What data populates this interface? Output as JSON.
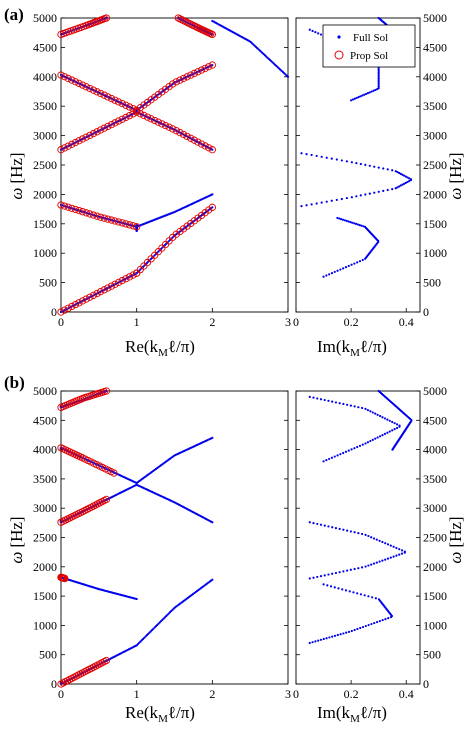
{
  "panels": [
    {
      "label": "(a)",
      "ylabel_omega": "ω",
      "ylabel_units": "[Hz]",
      "xlabel_re": "Re(k",
      "xlabel_im": "Im(k",
      "xlabel_sub": "M",
      "xlabel_tail": "ℓ/π)",
      "legend": [
        "Full Sol",
        "Prop Sol"
      ]
    },
    {
      "label": "(b)",
      "ylabel_omega": "ω",
      "ylabel_units": "[Hz]",
      "xlabel_re": "Re(k",
      "xlabel_im": "Im(k",
      "xlabel_sub": "M",
      "xlabel_tail": "ℓ/π)"
    }
  ],
  "colors": {
    "full": "#0000ee",
    "prop": "#e00000",
    "axis": "#000000"
  },
  "chart_data": [
    {
      "type": "scatter",
      "title": "",
      "panel": "(a)",
      "ylabel": "ω [Hz]",
      "ylim": [
        0,
        5000
      ],
      "yticks": [
        0,
        500,
        1000,
        1500,
        2000,
        2500,
        3000,
        3500,
        4000,
        4500,
        5000
      ],
      "legend_placement": "top-right of Im subplot",
      "subplots": [
        {
          "xlabel": "Re(kMℓ/π)",
          "xlim": [
            0,
            3
          ],
          "xticks": [
            0,
            1,
            2,
            3
          ],
          "series": [
            {
              "name": "Full Sol",
              "marker": "dot",
              "branches": [
                [
                  [
                    0,
                    0
                  ],
                  [
                    0.5,
                    330
                  ],
                  [
                    1,
                    660
                  ]
                ],
                [
                  [
                    1,
                    660
                  ],
                  [
                    1.5,
                    1300
                  ],
                  [
                    2,
                    1780
                  ]
                ],
                [
                  [
                    1,
                    1380
                  ],
                  [
                    1,
                    1480
                  ]
                ],
                [
                  [
                    0,
                    1820
                  ],
                  [
                    0.5,
                    1620
                  ],
                  [
                    1,
                    1450
                  ]
                ],
                [
                  [
                    1,
                    1450
                  ],
                  [
                    1.5,
                    1700
                  ],
                  [
                    2,
                    2000
                  ]
                ],
                [
                  [
                    0,
                    2760
                  ],
                  [
                    0.5,
                    3080
                  ],
                  [
                    1,
                    3400
                  ]
                ],
                [
                  [
                    1,
                    3400
                  ],
                  [
                    1.5,
                    3100
                  ],
                  [
                    2,
                    2760
                  ]
                ],
                [
                  [
                    0,
                    4030
                  ],
                  [
                    0.5,
                    3730
                  ],
                  [
                    1,
                    3430
                  ]
                ],
                [
                  [
                    1,
                    3430
                  ],
                  [
                    1.5,
                    3900
                  ],
                  [
                    2,
                    4200
                  ]
                ],
                [
                  [
                    0,
                    4720
                  ],
                  [
                    0.35,
                    4880
                  ],
                  [
                    0.6,
                    5000
                  ]
                ],
                [
                  [
                    1.55,
                    5000
                  ],
                  [
                    1.8,
                    4840
                  ],
                  [
                    2,
                    4720
                  ]
                ],
                [
                  [
                    2.0,
                    4950
                  ],
                  [
                    2.5,
                    4600
                  ],
                  [
                    3,
                    4000
                  ]
                ]
              ]
            },
            {
              "name": "Prop Sol",
              "marker": "circle",
              "branches": [
                [
                  [
                    0,
                    0
                  ],
                  [
                    0.5,
                    330
                  ],
                  [
                    1,
                    660
                  ]
                ],
                [
                  [
                    1,
                    660
                  ],
                  [
                    1.5,
                    1300
                  ],
                  [
                    2,
                    1780
                  ]
                ],
                [
                  [
                    0,
                    1820
                  ],
                  [
                    0.5,
                    1620
                  ],
                  [
                    1,
                    1450
                  ]
                ],
                [
                  [
                    0,
                    2760
                  ],
                  [
                    0.5,
                    3080
                  ],
                  [
                    1,
                    3400
                  ]
                ],
                [
                  [
                    1,
                    3400
                  ],
                  [
                    1.5,
                    3100
                  ],
                  [
                    2,
                    2760
                  ]
                ],
                [
                  [
                    0,
                    4030
                  ],
                  [
                    0.5,
                    3730
                  ],
                  [
                    1,
                    3430
                  ]
                ],
                [
                  [
                    1,
                    3430
                  ],
                  [
                    1.5,
                    3900
                  ],
                  [
                    2,
                    4200
                  ]
                ],
                [
                  [
                    0,
                    4720
                  ],
                  [
                    0.35,
                    4880
                  ],
                  [
                    0.6,
                    5000
                  ]
                ],
                [
                  [
                    1.55,
                    5000
                  ],
                  [
                    1.8,
                    4840
                  ],
                  [
                    2,
                    4720
                  ]
                ]
              ]
            }
          ]
        },
        {
          "xlabel": "Im(kMℓ/π)",
          "xlim": [
            0,
            0.45
          ],
          "xticks": [
            0,
            0.2,
            0.4
          ],
          "series": [
            {
              "name": "Full Sol",
              "marker": "dot",
              "branches": [
                [
                  [
                    0.02,
                    2700
                  ],
                  [
                    0.2,
                    2550
                  ],
                  [
                    0.36,
                    2400
                  ],
                  [
                    0.42,
                    2250
                  ],
                  [
                    0.36,
                    2100
                  ],
                  [
                    0.2,
                    1950
                  ],
                  [
                    0.02,
                    1800
                  ]
                ],
                [
                  [
                    0.15,
                    1600
                  ],
                  [
                    0.25,
                    1450
                  ],
                  [
                    0.3,
                    1200
                  ],
                  [
                    0.25,
                    900
                  ],
                  [
                    0.1,
                    600
                  ]
                ],
                [
                  [
                    0.05,
                    4800
                  ],
                  [
                    0.2,
                    4500
                  ],
                  [
                    0.3,
                    4200
                  ],
                  [
                    0.3,
                    3800
                  ],
                  [
                    0.2,
                    3600
                  ]
                ],
                [
                  [
                    0.3,
                    5000
                  ],
                  [
                    0.4,
                    4600
                  ],
                  [
                    0.42,
                    4300
                  ]
                ]
              ]
            }
          ]
        }
      ]
    },
    {
      "type": "scatter",
      "title": "",
      "panel": "(b)",
      "ylabel": "ω [Hz]",
      "ylim": [
        0,
        5000
      ],
      "yticks": [
        0,
        500,
        1000,
        1500,
        2000,
        2500,
        3000,
        3500,
        4000,
        4500,
        5000
      ],
      "subplots": [
        {
          "xlabel": "Re(kMℓ/π)",
          "xlim": [
            0,
            3
          ],
          "xticks": [
            0,
            1,
            2,
            3
          ],
          "series": [
            {
              "name": "Full Sol",
              "marker": "dot",
              "branches": [
                [
                  [
                    0,
                    0
                  ],
                  [
                    0.5,
                    330
                  ],
                  [
                    1,
                    660
                  ]
                ],
                [
                  [
                    1,
                    660
                  ],
                  [
                    1.5,
                    1300
                  ],
                  [
                    2,
                    1780
                  ]
                ],
                [
                  [
                    0,
                    1820
                  ],
                  [
                    0.5,
                    1620
                  ],
                  [
                    1,
                    1450
                  ]
                ],
                [
                  [
                    0,
                    2760
                  ],
                  [
                    0.5,
                    3080
                  ],
                  [
                    1,
                    3400
                  ]
                ],
                [
                  [
                    1,
                    3400
                  ],
                  [
                    1.5,
                    3100
                  ],
                  [
                    2,
                    2760
                  ]
                ],
                [
                  [
                    0,
                    4030
                  ],
                  [
                    0.5,
                    3730
                  ],
                  [
                    1,
                    3430
                  ]
                ],
                [
                  [
                    1,
                    3430
                  ],
                  [
                    1.5,
                    3900
                  ],
                  [
                    2,
                    4200
                  ]
                ],
                [
                  [
                    0,
                    4720
                  ],
                  [
                    0.35,
                    4880
                  ],
                  [
                    0.6,
                    5000
                  ]
                ]
              ]
            },
            {
              "name": "Prop Sol",
              "marker": "circle",
              "branches": [
                [
                  [
                    0,
                    0
                  ],
                  [
                    0.3,
                    200
                  ],
                  [
                    0.6,
                    400
                  ]
                ],
                [
                  [
                    0,
                    1820
                  ],
                  [
                    0.05,
                    1800
                  ]
                ],
                [
                  [
                    0,
                    2760
                  ],
                  [
                    0.3,
                    2950
                  ],
                  [
                    0.6,
                    3150
                  ]
                ],
                [
                  [
                    0,
                    4030
                  ],
                  [
                    0.3,
                    3850
                  ],
                  [
                    0.7,
                    3600
                  ]
                ],
                [
                  [
                    0,
                    4720
                  ],
                  [
                    0.3,
                    4880
                  ],
                  [
                    0.6,
                    5000
                  ]
                ]
              ]
            }
          ]
        },
        {
          "xlabel": "Im(kMℓ/π)",
          "xlim": [
            0,
            0.45
          ],
          "xticks": [
            0,
            0.2,
            0.4
          ],
          "series": [
            {
              "name": "Full Sol",
              "marker": "dot",
              "branches": [
                [
                  [
                    0.05,
                    2760
                  ],
                  [
                    0.25,
                    2550
                  ],
                  [
                    0.4,
                    2250
                  ],
                  [
                    0.25,
                    2000
                  ],
                  [
                    0.05,
                    1800
                  ]
                ],
                [
                  [
                    0.1,
                    1700
                  ],
                  [
                    0.3,
                    1450
                  ],
                  [
                    0.35,
                    1150
                  ],
                  [
                    0.2,
                    900
                  ],
                  [
                    0.05,
                    700
                  ]
                ],
                [
                  [
                    0.05,
                    4900
                  ],
                  [
                    0.25,
                    4700
                  ],
                  [
                    0.38,
                    4400
                  ],
                  [
                    0.25,
                    4100
                  ],
                  [
                    0.1,
                    3800
                  ]
                ],
                [
                  [
                    0.3,
                    5000
                  ],
                  [
                    0.42,
                    4500
                  ],
                  [
                    0.35,
                    4000
                  ]
                ]
              ]
            }
          ]
        }
      ]
    }
  ]
}
